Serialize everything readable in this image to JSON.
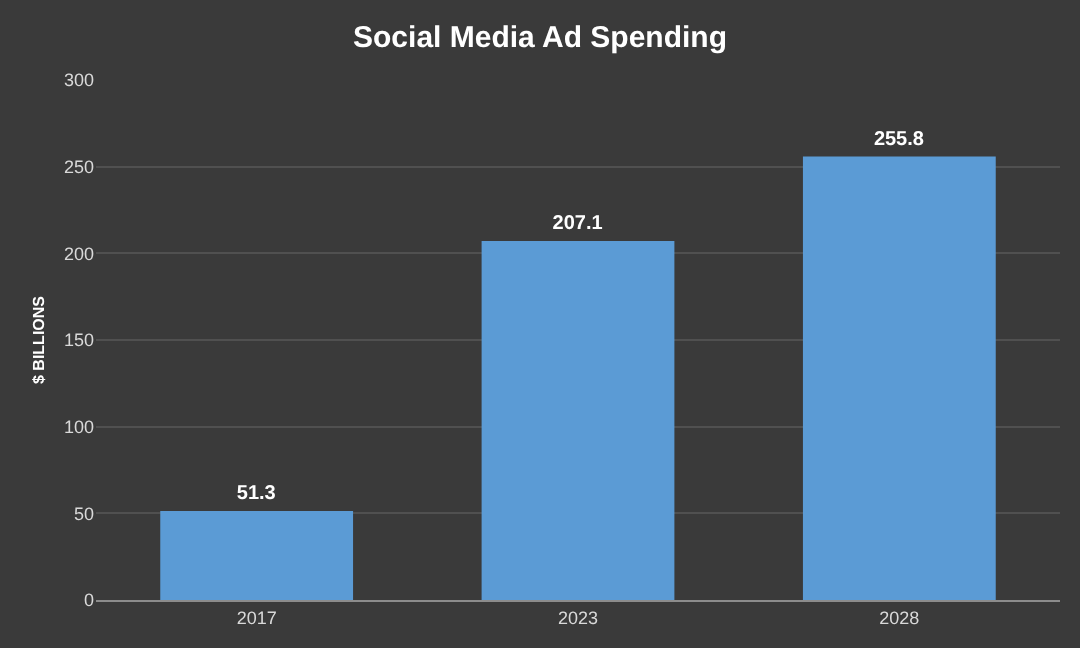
{
  "chart_data": {
    "type": "bar",
    "title": "Social Media Ad Spending",
    "ylabel": "$ BILLIONS",
    "categories": [
      "2017",
      "2023",
      "2028"
    ],
    "values": [
      51.3,
      207.1,
      255.8
    ],
    "color": "#5b9bd5",
    "ylim": [
      0,
      300
    ],
    "yticks": [
      0,
      50,
      100,
      150,
      200,
      250,
      300
    ],
    "grid": "y",
    "data_labels": true
  }
}
